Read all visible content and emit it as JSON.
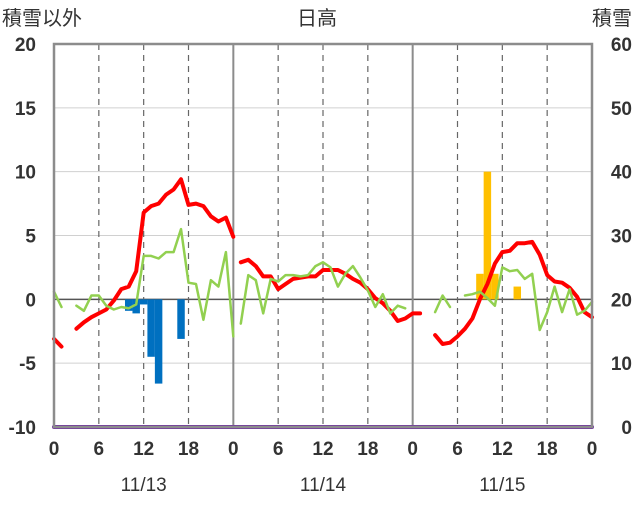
{
  "chart_data": {
    "type": "line",
    "title": "日高",
    "left_axis_label": "積雪以外",
    "right_axis_label": "積雪",
    "ylim_left": [
      -10,
      20
    ],
    "ylim_right": [
      0,
      60
    ],
    "xlim": [
      0,
      72
    ],
    "y_ticks_left": [
      "20",
      "15",
      "10",
      "5",
      "0",
      "-5",
      "-10"
    ],
    "y_ticks_right": [
      "60",
      "50",
      "40",
      "30",
      "20",
      "10",
      "0"
    ],
    "x_ticks": [
      {
        "x": 0,
        "label": "0"
      },
      {
        "x": 6,
        "label": "6"
      },
      {
        "x": 12,
        "label": "12"
      },
      {
        "x": 18,
        "label": "18"
      },
      {
        "x": 24,
        "label": "0"
      },
      {
        "x": 30,
        "label": "6"
      },
      {
        "x": 36,
        "label": "12"
      },
      {
        "x": 42,
        "label": "18"
      },
      {
        "x": 48,
        "label": "0"
      },
      {
        "x": 54,
        "label": "6"
      },
      {
        "x": 60,
        "label": "12"
      },
      {
        "x": 66,
        "label": "18"
      },
      {
        "x": 72,
        "label": "0"
      }
    ],
    "dates": [
      "11/13",
      "11/14",
      "11/15"
    ],
    "grid": true,
    "series": [
      {
        "color": "#ff0000",
        "axis": "left",
        "points": [
          [
            0,
            -3.1
          ],
          [
            1,
            -3.7
          ],
          [
            null,
            null
          ],
          [
            3,
            -2.3
          ],
          [
            4,
            -1.8
          ],
          [
            5,
            -1.4
          ],
          [
            6,
            -1.1
          ],
          [
            7,
            -0.8
          ],
          [
            8,
            -0.1
          ],
          [
            9,
            0.8
          ],
          [
            10,
            1.0
          ],
          [
            11,
            2.2
          ],
          [
            12,
            6.8
          ],
          [
            13,
            7.3
          ],
          [
            14,
            7.5
          ],
          [
            15,
            8.2
          ],
          [
            16,
            8.6
          ],
          [
            17,
            9.4
          ],
          [
            18,
            7.4
          ],
          [
            19,
            7.5
          ],
          [
            20,
            7.3
          ],
          [
            21,
            6.5
          ],
          [
            22,
            6.1
          ],
          [
            23,
            6.4
          ],
          [
            24,
            4.9
          ],
          [
            null,
            null
          ],
          [
            25,
            2.9
          ],
          [
            26,
            3.1
          ],
          [
            27,
            2.6
          ],
          [
            28,
            1.8
          ],
          [
            29,
            1.8
          ],
          [
            30,
            0.8
          ],
          [
            31,
            1.2
          ],
          [
            32,
            1.6
          ],
          [
            33,
            1.7
          ],
          [
            34,
            1.8
          ],
          [
            35,
            1.8
          ],
          [
            36,
            2.3
          ],
          [
            37,
            2.3
          ],
          [
            38,
            2.3
          ],
          [
            39,
            2.0
          ],
          [
            40,
            1.6
          ],
          [
            41,
            1.3
          ],
          [
            42,
            0.8
          ],
          [
            43,
            0.1
          ],
          [
            44,
            -0.3
          ],
          [
            45,
            -0.9
          ],
          [
            46,
            -1.7
          ],
          [
            47,
            -1.5
          ],
          [
            48,
            -1.1
          ],
          [
            49,
            -1.1
          ],
          [
            null,
            null
          ],
          [
            51,
            -2.8
          ],
          [
            52,
            -3.5
          ],
          [
            53,
            -3.4
          ],
          [
            54,
            -2.9
          ],
          [
            55,
            -2.3
          ],
          [
            56,
            -1.5
          ],
          [
            57,
            0.0
          ],
          [
            58,
            1.2
          ],
          [
            59,
            2.8
          ],
          [
            60,
            3.7
          ],
          [
            61,
            3.8
          ],
          [
            62,
            4.4
          ],
          [
            63,
            4.4
          ],
          [
            64,
            4.5
          ],
          [
            65,
            3.5
          ],
          [
            66,
            1.9
          ],
          [
            67,
            1.4
          ],
          [
            68,
            1.3
          ],
          [
            69,
            0.9
          ],
          [
            70,
            0.2
          ],
          [
            71,
            -1.0
          ],
          [
            72,
            -1.4
          ]
        ]
      },
      {
        "color": "#92d050",
        "axis": "left",
        "points": [
          [
            0,
            0.6
          ],
          [
            1,
            -0.6
          ],
          [
            null,
            null
          ],
          [
            3,
            -0.5
          ],
          [
            4,
            -0.9
          ],
          [
            5,
            0.3
          ],
          [
            6,
            0.3
          ],
          [
            7,
            -0.5
          ],
          [
            8,
            -0.8
          ],
          [
            9,
            -0.6
          ],
          [
            10,
            -0.7
          ],
          [
            11,
            -0.4
          ],
          [
            12,
            3.4
          ],
          [
            13,
            3.4
          ],
          [
            14,
            3.2
          ],
          [
            15,
            3.7
          ],
          [
            16,
            3.7
          ],
          [
            17,
            5.5
          ],
          [
            18,
            1.3
          ],
          [
            19,
            1.2
          ],
          [
            20,
            -1.6
          ],
          [
            21,
            1.5
          ],
          [
            22,
            1.0
          ],
          [
            23,
            3.7
          ],
          [
            24,
            -2.9
          ],
          [
            null,
            null
          ],
          [
            25,
            -1.9
          ],
          [
            26,
            1.9
          ],
          [
            27,
            1.5
          ],
          [
            28,
            -1.1
          ],
          [
            29,
            1.6
          ],
          [
            30,
            1.4
          ],
          [
            31,
            1.9
          ],
          [
            32,
            1.9
          ],
          [
            33,
            1.8
          ],
          [
            34,
            1.9
          ],
          [
            35,
            2.6
          ],
          [
            36,
            2.9
          ],
          [
            37,
            2.5
          ],
          [
            38,
            1.0
          ],
          [
            39,
            2.0
          ],
          [
            40,
            2.6
          ],
          [
            41,
            1.7
          ],
          [
            42,
            0.7
          ],
          [
            43,
            -0.6
          ],
          [
            44,
            0.4
          ],
          [
            45,
            -1.1
          ],
          [
            46,
            -0.5
          ],
          [
            47,
            -0.7
          ],
          [
            null,
            null
          ],
          [
            51,
            -1.0
          ],
          [
            52,
            0.3
          ],
          [
            53,
            -0.6
          ],
          [
            null,
            null
          ],
          [
            55,
            0.3
          ],
          [
            56,
            0.4
          ],
          [
            57,
            0.6
          ],
          [
            58,
            0.1
          ],
          [
            59,
            -0.5
          ],
          [
            60,
            2.5
          ],
          [
            61,
            2.2
          ],
          [
            62,
            2.3
          ],
          [
            63,
            1.6
          ],
          [
            64,
            2.0
          ],
          [
            65,
            -2.4
          ],
          [
            66,
            -1.0
          ],
          [
            67,
            1.0
          ],
          [
            68,
            -1.0
          ],
          [
            69,
            0.8
          ],
          [
            70,
            -1.2
          ],
          [
            71,
            -0.9
          ],
          [
            72,
            -0.2
          ]
        ]
      },
      {
        "color": "#7030a0",
        "axis": "left",
        "points": [
          [
            0,
            -10
          ],
          [
            72,
            -10
          ]
        ]
      }
    ],
    "bars": [
      {
        "color": "#0070c0",
        "axis": "left",
        "width_hours": 1,
        "data": [
          [
            10,
            -0.9
          ],
          [
            11,
            -1.1
          ],
          [
            12,
            -0.4
          ],
          [
            13,
            -4.5
          ],
          [
            14,
            -6.6
          ],
          [
            17,
            -3.1
          ]
        ]
      },
      {
        "color": "#ffc000",
        "axis": "right",
        "width_hours": 1,
        "data": [
          [
            57,
            24
          ],
          [
            58,
            40
          ],
          [
            59,
            24
          ],
          [
            62,
            22
          ]
        ]
      }
    ]
  }
}
